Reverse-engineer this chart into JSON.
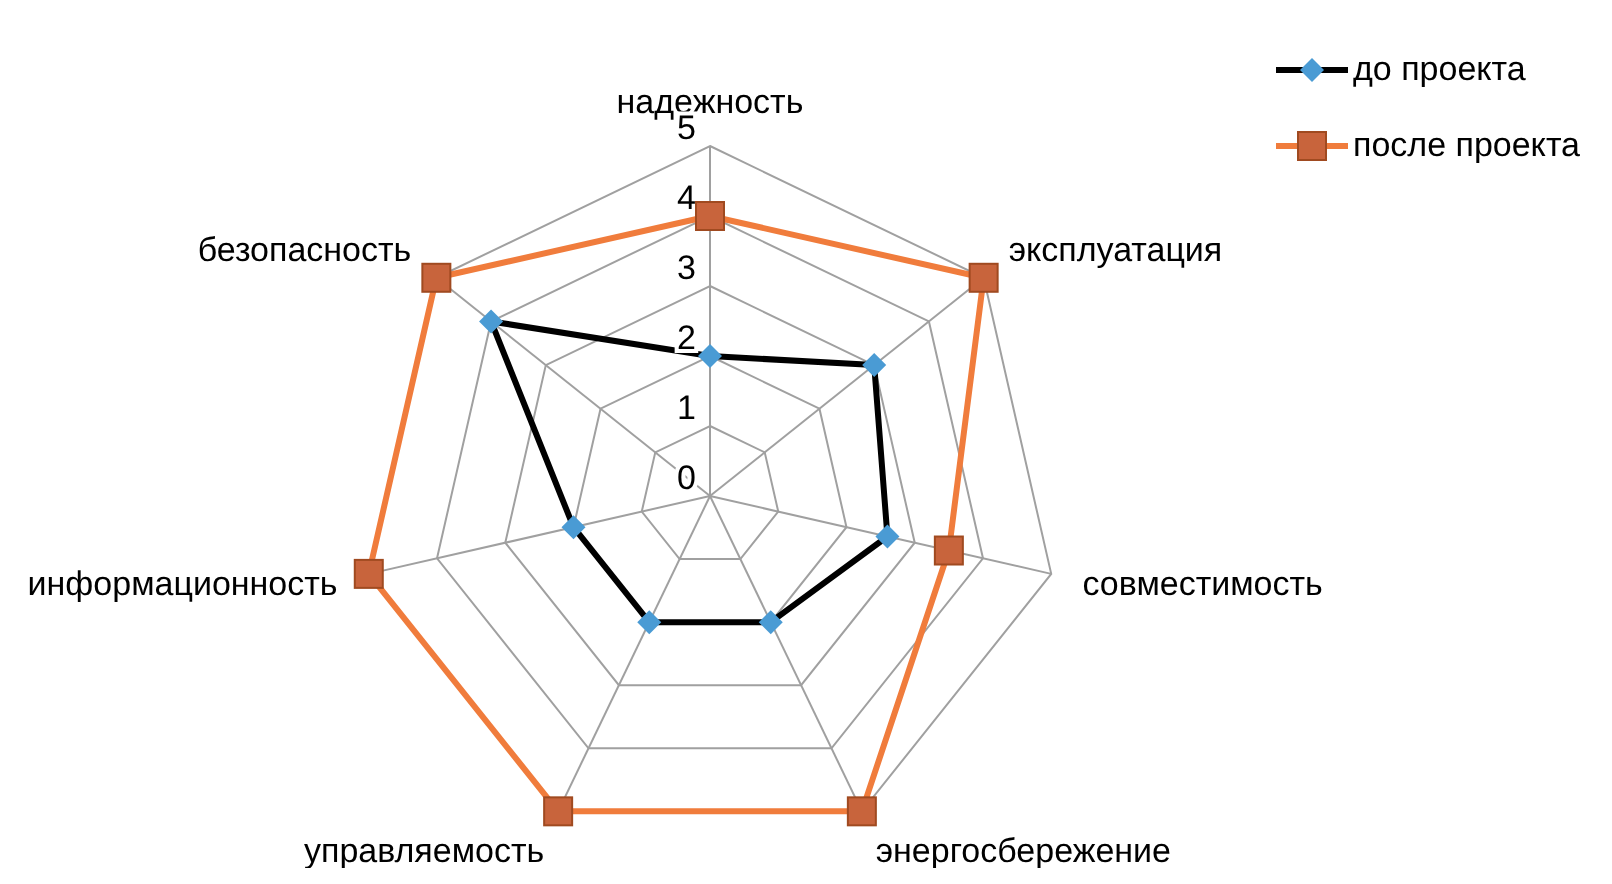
{
  "chart_data": {
    "type": "radar",
    "categories": [
      "надежность",
      "эксплуатация",
      "совместимость",
      "энергосбережение",
      "управляемость",
      "информационность",
      "безопасность"
    ],
    "ylim": [
      0,
      5
    ],
    "yticks": [
      0,
      1,
      2,
      3,
      4,
      5
    ],
    "grid": true,
    "legend": "top right",
    "series": [
      {
        "name": "до проекта",
        "color": "#000000",
        "colors": [
          "#4a9bd4",
          "#4a9bd4",
          "#4a9bd4",
          "#4a9bd4",
          "#4a9bd4",
          "#4a9bd4",
          "#4a9bd4"
        ],
        "marker": "diamond",
        "values": [
          2,
          3,
          2.6,
          2,
          2,
          2,
          4
        ]
      },
      {
        "name": "после проекта",
        "color": "#f07c3c",
        "colors": [
          "#c8643c",
          "#c8643c",
          "#c8643c",
          "#c8643c",
          "#c8643c",
          "#c8643c",
          "#c8643c"
        ],
        "marker": "square",
        "values": [
          4,
          5,
          3.5,
          5,
          5,
          5,
          5
        ]
      }
    ]
  }
}
